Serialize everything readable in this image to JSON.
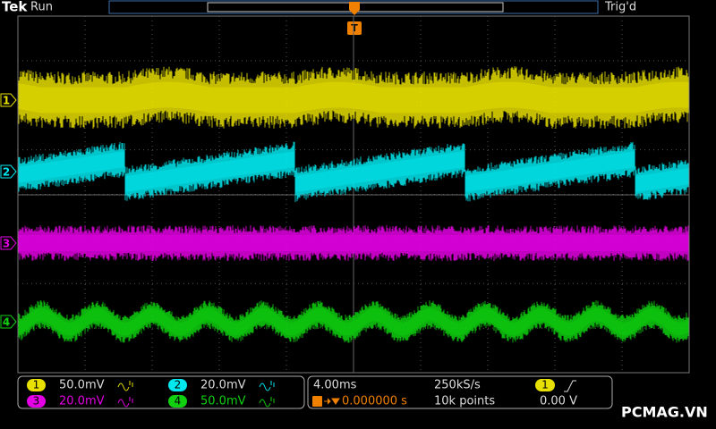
{
  "header": {
    "brand": "Tek",
    "status": "Run",
    "trigger_status": "Trig'd",
    "trigger_marker": "T"
  },
  "channels": [
    {
      "label": "1",
      "scale": "50.0mV",
      "color": "#e8e000"
    },
    {
      "label": "2",
      "scale": "20.0mV",
      "color": "#00e8ee"
    },
    {
      "label": "3",
      "scale": "20.0mV",
      "color": "#e400e4"
    },
    {
      "label": "4",
      "scale": "50.0mV",
      "color": "#10d010"
    }
  ],
  "horizontal": {
    "time_div": "4.00ms",
    "sample_rate": "250kS/s",
    "position": "0.000000 s",
    "record_length": "10k points"
  },
  "trigger": {
    "source": "1",
    "level": "0.00 V"
  },
  "watermark": "PCMAG.VN"
}
